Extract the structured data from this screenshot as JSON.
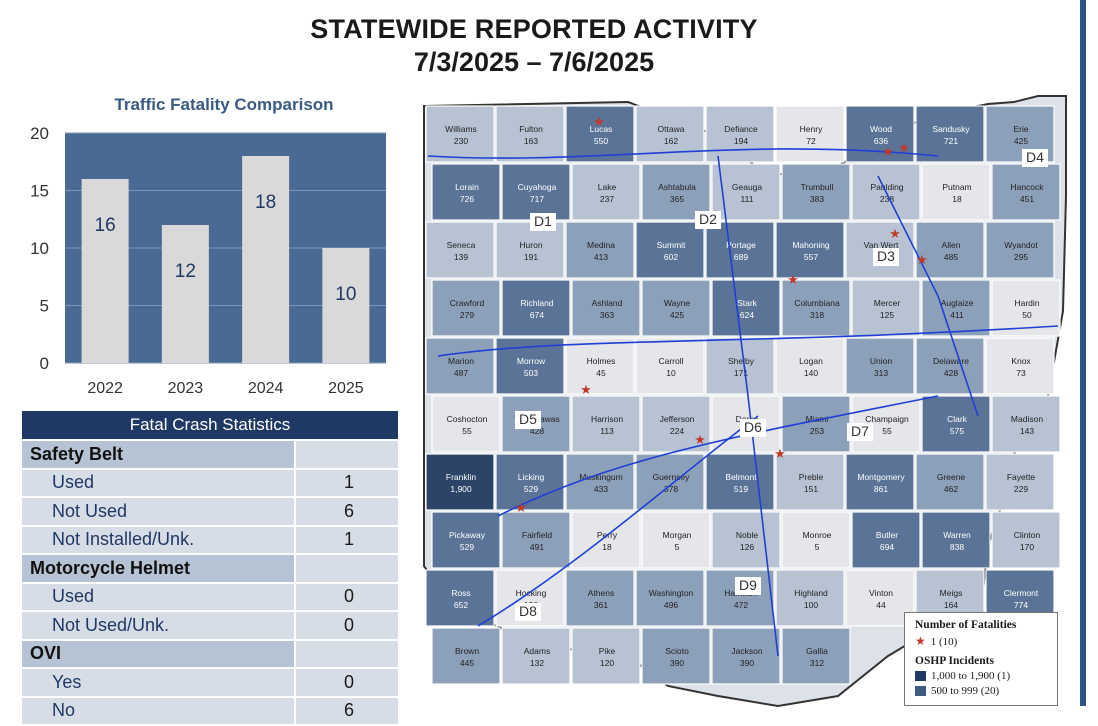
{
  "header": {
    "title": "STATEWIDE REPORTED ACTIVITY",
    "date_range": "7/3/2025 – 7/6/2025"
  },
  "chart_data": {
    "type": "bar",
    "title": "Traffic Fatality Comparison",
    "categories": [
      "2022",
      "2023",
      "2024",
      "2025"
    ],
    "values": [
      16,
      12,
      18,
      10
    ],
    "yticks": [
      "0",
      "5",
      "10",
      "15",
      "20"
    ],
    "ylim": [
      0,
      20
    ],
    "grid": true,
    "colors": {
      "plot_bg": "#4a6a94",
      "bar": "#d9d9d9",
      "value_text": "#1f3864"
    }
  },
  "stats": {
    "header": "Fatal Crash Statistics",
    "rows": [
      {
        "kind": "cat",
        "label": "Safety Belt",
        "value": ""
      },
      {
        "kind": "sub",
        "label": "Used",
        "value": "1"
      },
      {
        "kind": "sub",
        "label": "Not Used",
        "value": "6"
      },
      {
        "kind": "sub",
        "label": "Not Installed/Unk.",
        "value": "1"
      },
      {
        "kind": "cat",
        "label": "Motorcycle Helmet",
        "value": ""
      },
      {
        "kind": "sub",
        "label": "Used",
        "value": "0"
      },
      {
        "kind": "sub",
        "label": "Not Used/Unk.",
        "value": "0"
      },
      {
        "kind": "cat",
        "label": "OVI",
        "value": ""
      },
      {
        "kind": "sub",
        "label": "Yes",
        "value": "0"
      },
      {
        "kind": "sub",
        "label": "No",
        "value": "6"
      }
    ]
  },
  "map": {
    "district_labels": [
      "D1",
      "D2",
      "D3",
      "D4",
      "D5",
      "D6",
      "D7",
      "D8",
      "D9"
    ],
    "counties": [
      {
        "name": "Williams",
        "value": "230",
        "shade": 2
      },
      {
        "name": "Fulton",
        "value": "163",
        "shade": 2
      },
      {
        "name": "Lucas",
        "value": "550",
        "shade": 4
      },
      {
        "name": "Ottawa",
        "value": "162",
        "shade": 2
      },
      {
        "name": "Defiance",
        "value": "194",
        "shade": 2
      },
      {
        "name": "Henry",
        "value": "72",
        "shade": 1
      },
      {
        "name": "Wood",
        "value": "636",
        "shade": 4
      },
      {
        "name": "Sandusky",
        "value": "721",
        "shade": 4
      },
      {
        "name": "Erie",
        "value": "425",
        "shade": 3
      },
      {
        "name": "Lorain",
        "value": "726",
        "shade": 4
      },
      {
        "name": "Cuyahoga",
        "value": "717",
        "shade": 4
      },
      {
        "name": "Lake",
        "value": "237",
        "shade": 2
      },
      {
        "name": "Ashtabula",
        "value": "365",
        "shade": 3
      },
      {
        "name": "Geauga",
        "value": "111",
        "shade": 2
      },
      {
        "name": "Trumbull",
        "value": "383",
        "shade": 3
      },
      {
        "name": "Paulding",
        "value": "238",
        "shade": 2
      },
      {
        "name": "Putnam",
        "value": "18",
        "shade": 1
      },
      {
        "name": "Hancock",
        "value": "451",
        "shade": 3
      },
      {
        "name": "Seneca",
        "value": "139",
        "shade": 2
      },
      {
        "name": "Huron",
        "value": "191",
        "shade": 2
      },
      {
        "name": "Medina",
        "value": "413",
        "shade": 3
      },
      {
        "name": "Summit",
        "value": "602",
        "shade": 4
      },
      {
        "name": "Portage",
        "value": "689",
        "shade": 4
      },
      {
        "name": "Mahoning",
        "value": "557",
        "shade": 4
      },
      {
        "name": "Van Wert",
        "value": "189",
        "shade": 2
      },
      {
        "name": "Allen",
        "value": "485",
        "shade": 3
      },
      {
        "name": "Wyandot",
        "value": "295",
        "shade": 3
      },
      {
        "name": "Crawford",
        "value": "279",
        "shade": 3
      },
      {
        "name": "Richland",
        "value": "674",
        "shade": 4
      },
      {
        "name": "Ashland",
        "value": "363",
        "shade": 3
      },
      {
        "name": "Wayne",
        "value": "425",
        "shade": 3
      },
      {
        "name": "Stark",
        "value": "624",
        "shade": 4
      },
      {
        "name": "Columbiana",
        "value": "318",
        "shade": 3
      },
      {
        "name": "Mercer",
        "value": "125",
        "shade": 2
      },
      {
        "name": "Auglaize",
        "value": "411",
        "shade": 3
      },
      {
        "name": "Hardin",
        "value": "50",
        "shade": 1
      },
      {
        "name": "Marion",
        "value": "487",
        "shade": 3
      },
      {
        "name": "Morrow",
        "value": "503",
        "shade": 4
      },
      {
        "name": "Holmes",
        "value": "45",
        "shade": 1
      },
      {
        "name": "Carroll",
        "value": "10",
        "shade": 1
      },
      {
        "name": "Shelby",
        "value": "171",
        "shade": 2
      },
      {
        "name": "Logan",
        "value": "140",
        "shade": 1
      },
      {
        "name": "Union",
        "value": "313",
        "shade": 3
      },
      {
        "name": "Delaware",
        "value": "428",
        "shade": 3
      },
      {
        "name": "Knox",
        "value": "73",
        "shade": 1
      },
      {
        "name": "Coshocton",
        "value": "55",
        "shade": 1
      },
      {
        "name": "Tuscarawas",
        "value": "428",
        "shade": 3
      },
      {
        "name": "Harrison",
        "value": "113",
        "shade": 2
      },
      {
        "name": "Jefferson",
        "value": "224",
        "shade": 2
      },
      {
        "name": "Darke",
        "value": "32",
        "shade": 1
      },
      {
        "name": "Miami",
        "value": "253",
        "shade": 3
      },
      {
        "name": "Champaign",
        "value": "55",
        "shade": 1
      },
      {
        "name": "Clark",
        "value": "575",
        "shade": 4
      },
      {
        "name": "Madison",
        "value": "143",
        "shade": 2
      },
      {
        "name": "Franklin",
        "value": "1,900",
        "shade": 5
      },
      {
        "name": "Licking",
        "value": "529",
        "shade": 4
      },
      {
        "name": "Muskingum",
        "value": "433",
        "shade": 3
      },
      {
        "name": "Guernsey",
        "value": "378",
        "shade": 3
      },
      {
        "name": "Belmont",
        "value": "519",
        "shade": 4
      },
      {
        "name": "Preble",
        "value": "151",
        "shade": 2
      },
      {
        "name": "Montgomery",
        "value": "861",
        "shade": 4
      },
      {
        "name": "Greene",
        "value": "462",
        "shade": 3
      },
      {
        "name": "Fayette",
        "value": "229",
        "shade": 2
      },
      {
        "name": "Pickaway",
        "value": "529",
        "shade": 4
      },
      {
        "name": "Fairfield",
        "value": "491",
        "shade": 3
      },
      {
        "name": "Perry",
        "value": "18",
        "shade": 1
      },
      {
        "name": "Morgan",
        "value": "5",
        "shade": 1
      },
      {
        "name": "Noble",
        "value": "126",
        "shade": 2
      },
      {
        "name": "Monroe",
        "value": "5",
        "shade": 1
      },
      {
        "name": "Butler",
        "value": "694",
        "shade": 4
      },
      {
        "name": "Warren",
        "value": "838",
        "shade": 4
      },
      {
        "name": "Clinton",
        "value": "170",
        "shade": 2
      },
      {
        "name": "Ross",
        "value": "652",
        "shade": 4
      },
      {
        "name": "Hocking",
        "value": "120",
        "shade": 1
      },
      {
        "name": "Athens",
        "value": "361",
        "shade": 3
      },
      {
        "name": "Washington",
        "value": "496",
        "shade": 3
      },
      {
        "name": "Hamilton",
        "value": "472",
        "shade": 3
      },
      {
        "name": "Highland",
        "value": "100",
        "shade": 2
      },
      {
        "name": "Vinton",
        "value": "44",
        "shade": 1
      },
      {
        "name": "Meigs",
        "value": "164",
        "shade": 2
      },
      {
        "name": "Clermont",
        "value": "774",
        "shade": 4
      },
      {
        "name": "Brown",
        "value": "445",
        "shade": 3
      },
      {
        "name": "Adams",
        "value": "132",
        "shade": 2
      },
      {
        "name": "Pike",
        "value": "120",
        "shade": 2
      },
      {
        "name": "Scioto",
        "value": "390",
        "shade": 3
      },
      {
        "name": "Jackson",
        "value": "390",
        "shade": 3
      },
      {
        "name": "Gallia",
        "value": "312",
        "shade": 3
      }
    ],
    "shade_colors": [
      "#ffffff",
      "#e4e6ea",
      "#b7c3d3",
      "#8da0ba",
      "#5a7396",
      "#2c4468"
    ]
  },
  "legend": {
    "fatalities_title": "Number of Fatalities",
    "fatalities_item": "1  (10)",
    "incidents_title": "OSHP Incidents",
    "incident_item_1": "1,000  to  1,900    (1)",
    "incident_item_2": "500  to  999  (20)"
  }
}
